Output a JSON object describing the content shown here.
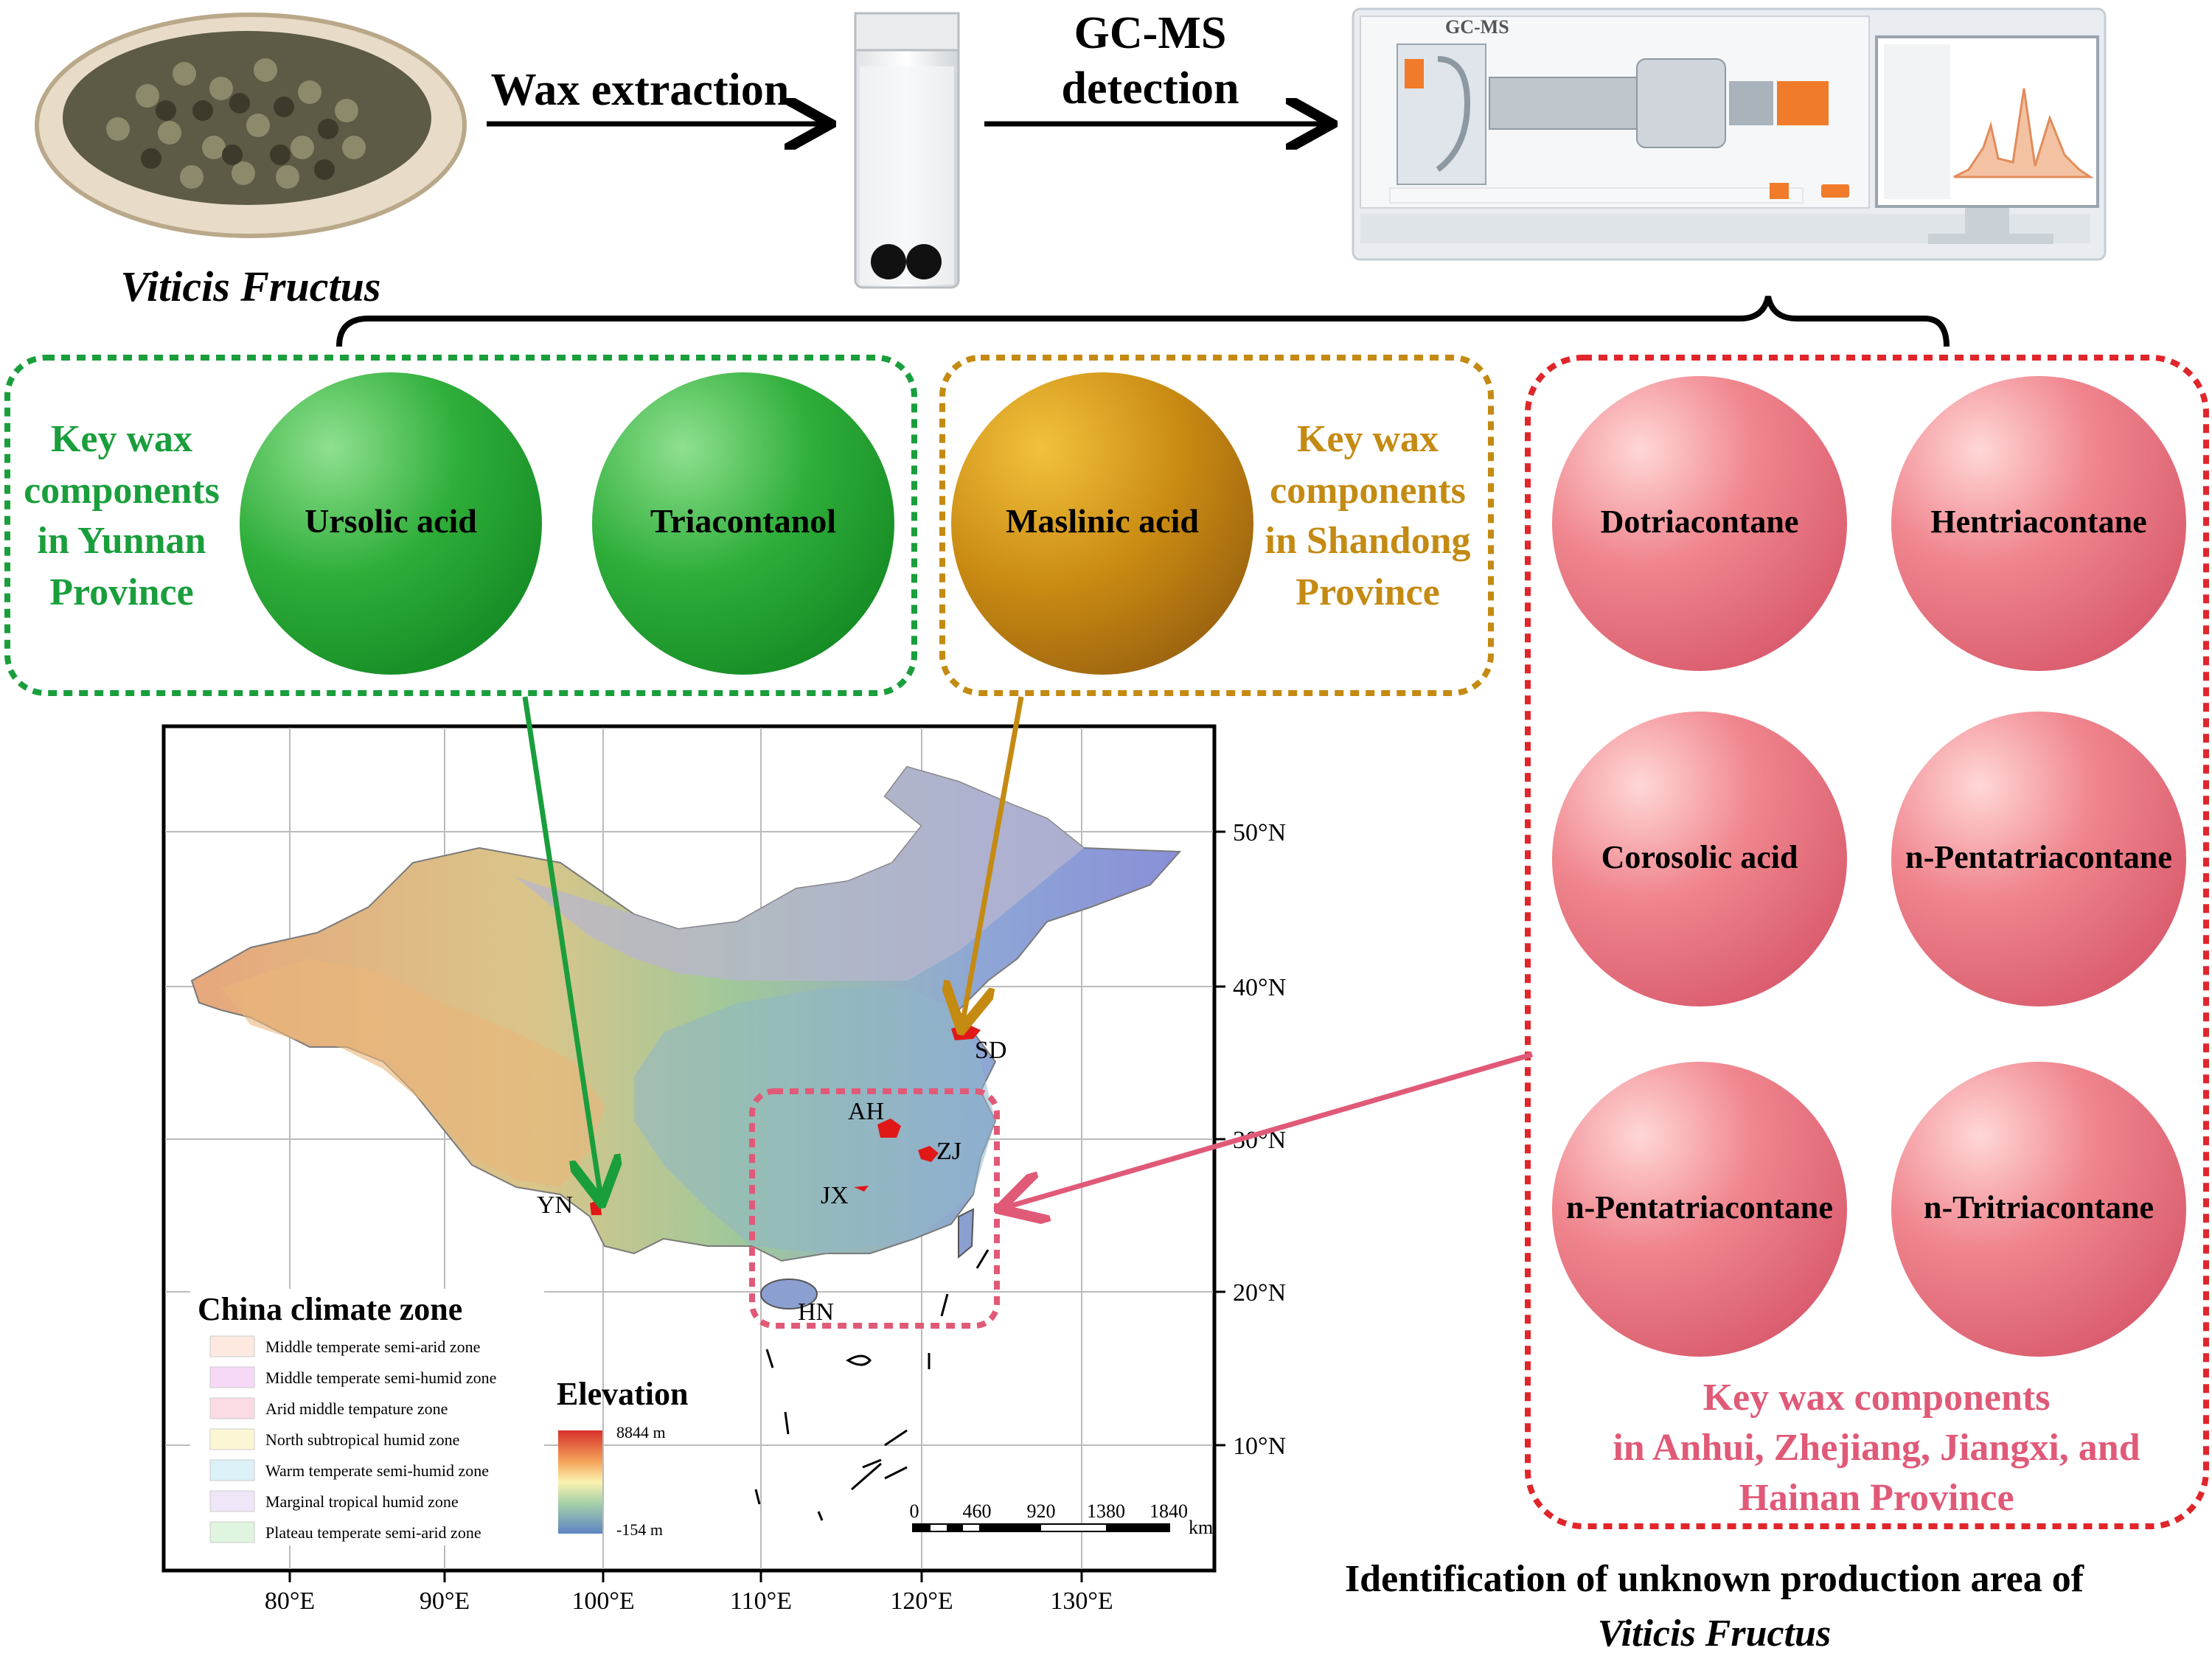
{
  "top_flow": {
    "sample_caption": "Viticis Fructus",
    "step1_label": "Wax extraction",
    "step2_label_line1": "GC-MS",
    "step2_label_line2": "detection",
    "instrument_label": "GC-MS"
  },
  "groups": {
    "yunnan": {
      "title_lines": [
        "Key wax",
        "components",
        "in Yunnan",
        "Province"
      ],
      "components": [
        "Ursolic acid",
        "Triacontanol"
      ],
      "color": "#1a9e3c"
    },
    "shandong": {
      "title_lines": [
        "Key wax",
        "components",
        "in Shandong",
        "Province"
      ],
      "components": [
        "Maslinic acid"
      ],
      "color": "#c48a12"
    },
    "southeast": {
      "title_lines": [
        "Key wax components",
        "in Anhui, Zhejiang, Jiangxi, and",
        "Hainan Province"
      ],
      "components": [
        "Dotriacontane",
        "Hentriacontane",
        "Corosolic acid",
        "n-Pentatriacontane",
        "n-Pentatriacontane",
        "n-Tritriacontane"
      ],
      "color": "#e05a78"
    }
  },
  "map": {
    "lat_labels": [
      "50°N",
      "40°N",
      "30°N",
      "20°N",
      "10°N"
    ],
    "lon_labels": [
      "80°E",
      "90°E",
      "100°E",
      "110°E",
      "120°E",
      "130°E"
    ],
    "regions": [
      "SD",
      "AH",
      "ZJ",
      "JX",
      "YN",
      "HN"
    ],
    "legend_title": "China climate zone",
    "climate_zones": [
      {
        "name": "Middle temperate semi-arid zone",
        "color": "#fde9df"
      },
      {
        "name": "Middle temperate semi-humid zone",
        "color": "#f6d9f6"
      },
      {
        "name": "Arid middle tempature zone",
        "color": "#fbdbe4"
      },
      {
        "name": "North subtropical humid zone",
        "color": "#fbf7d4"
      },
      {
        "name": "Warm temperate semi-humid zone",
        "color": "#dcf0f8"
      },
      {
        "name": "Marginal tropical humid zone",
        "color": "#efe6f8"
      },
      {
        "name": "Plateau temperate semi-arid zone",
        "color": "#dff5df"
      }
    ],
    "elevation_title": "Elevation",
    "elevation_max": "8844 m",
    "elevation_min": "-154 m",
    "scale_ticks": [
      "0",
      "460",
      "920",
      "1380",
      "1840"
    ],
    "scale_unit": "km"
  },
  "footer": {
    "line1": "Identification of unknown production area of",
    "line2": "Viticis Fructus"
  }
}
